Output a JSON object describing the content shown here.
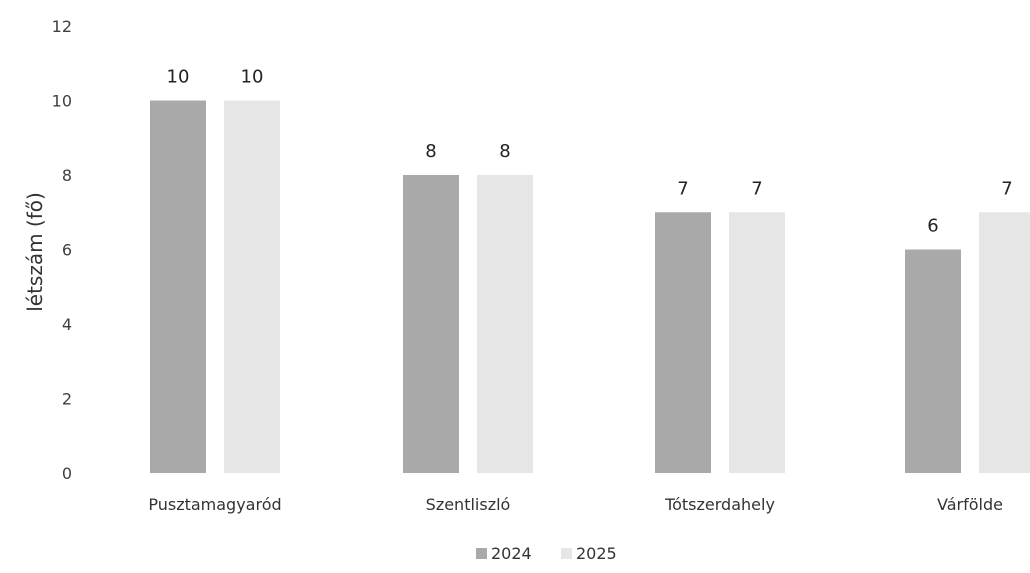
{
  "chart_data": {
    "type": "bar",
    "categories": [
      "Pusztamagyaród",
      "Szentliszló",
      "Tótszerdahely",
      "Várfölde"
    ],
    "series": [
      {
        "name": "2024",
        "values": [
          10,
          8,
          7,
          6
        ],
        "color": "#a9a9a9"
      },
      {
        "name": "2025",
        "values": [
          10,
          8,
          7,
          7
        ],
        "color": "#e6e6e6"
      }
    ],
    "data_labels": [
      [
        "10",
        "8",
        "7",
        "6"
      ],
      [
        "10",
        "8",
        "7",
        "7"
      ]
    ],
    "title": "",
    "xlabel": "",
    "ylabel": "létszám (fő)",
    "ylim": [
      0,
      12
    ],
    "yticks": [
      "0",
      "2",
      "4",
      "6",
      "8",
      "10",
      "12"
    ],
    "grid": false,
    "legend_position": "bottom"
  }
}
